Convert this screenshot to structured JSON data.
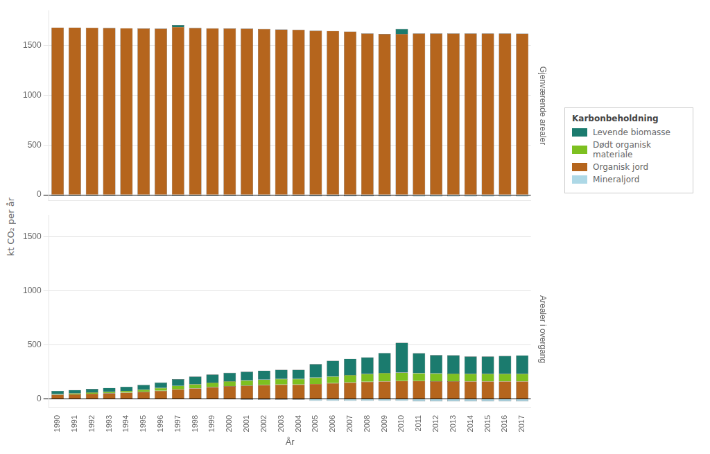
{
  "chart_data": [
    {
      "type": "bar",
      "stacked": true,
      "title": "Gjenværende arealer",
      "ylabel": "kt CO₂ per år",
      "categories": [
        1990,
        1991,
        1992,
        1993,
        1994,
        1995,
        1996,
        1997,
        1998,
        1999,
        2000,
        2001,
        2002,
        2003,
        2004,
        2005,
        2006,
        2007,
        2008,
        2009,
        2010,
        2011,
        2012,
        2013,
        2014,
        2015,
        2016,
        2017
      ],
      "series": [
        {
          "name": "Organisk jord",
          "color": "#b5651d",
          "values": [
            1680,
            1680,
            1678,
            1675,
            1673,
            1670,
            1668,
            1685,
            1675,
            1672,
            1670,
            1668,
            1665,
            1660,
            1658,
            1648,
            1645,
            1640,
            1620,
            1615,
            1615,
            1620,
            1620,
            1620,
            1620,
            1620,
            1620,
            1618
          ]
        },
        {
          "name": "Levende biomasse",
          "color": "#1b7b6e",
          "values": [
            0,
            0,
            0,
            0,
            0,
            0,
            0,
            20,
            0,
            0,
            0,
            0,
            0,
            0,
            0,
            0,
            0,
            0,
            0,
            0,
            50,
            0,
            0,
            0,
            0,
            0,
            0,
            0
          ]
        },
        {
          "name": "Mineraljord",
          "color": "#add8e6",
          "values": [
            -8,
            -8,
            -8,
            -8,
            -8,
            -8,
            -8,
            -10,
            -10,
            -10,
            -10,
            -10,
            -10,
            -10,
            -10,
            -12,
            -12,
            -12,
            -12,
            -12,
            -12,
            -14,
            -14,
            -14,
            -14,
            -14,
            -14,
            -14
          ]
        },
        {
          "name": "Levende biomasse",
          "color": "#1b7b6e",
          "values": [
            -3,
            -3,
            -3,
            -3,
            -3,
            -3,
            -3,
            -3,
            -3,
            -3,
            -3,
            -3,
            -3,
            -3,
            -3,
            -3,
            -3,
            -3,
            -3,
            -3,
            -3,
            -3,
            -3,
            -3,
            -3,
            -3,
            -3,
            -3
          ]
        }
      ],
      "ylim": [
        -60,
        1850
      ],
      "yticks": [
        0,
        500,
        1000,
        1500
      ],
      "grid": true,
      "tick_labels": "y"
    },
    {
      "type": "bar",
      "stacked": true,
      "title": "Arealer i overgang",
      "xlabel": "År",
      "categories": [
        1990,
        1991,
        1992,
        1993,
        1994,
        1995,
        1996,
        1997,
        1998,
        1999,
        2000,
        2001,
        2002,
        2003,
        2004,
        2005,
        2006,
        2007,
        2008,
        2009,
        2010,
        2011,
        2012,
        2013,
        2014,
        2015,
        2016,
        2017
      ],
      "series": [
        {
          "name": "Organisk jord",
          "color": "#b5651d",
          "values": [
            38,
            42,
            48,
            52,
            58,
            65,
            75,
            88,
            98,
            108,
            118,
            123,
            128,
            132,
            132,
            138,
            145,
            152,
            158,
            162,
            165,
            165,
            163,
            163,
            162,
            162,
            162,
            162
          ]
        },
        {
          "name": "Dødt organisk materiale",
          "color": "#7dc020",
          "values": [
            8,
            10,
            12,
            14,
            16,
            20,
            25,
            32,
            38,
            42,
            45,
            48,
            50,
            52,
            52,
            58,
            62,
            68,
            72,
            78,
            78,
            72,
            72,
            70,
            70,
            70,
            70,
            70
          ]
        },
        {
          "name": "Levende biomasse",
          "color": "#1b7b6e",
          "values": [
            28,
            30,
            32,
            35,
            38,
            45,
            52,
            62,
            70,
            75,
            78,
            80,
            83,
            85,
            85,
            125,
            145,
            150,
            155,
            185,
            275,
            185,
            170,
            170,
            160,
            160,
            165,
            170
          ]
        },
        {
          "name": "Mineraljord",
          "color": "#add8e6",
          "values": [
            0,
            0,
            0,
            0,
            0,
            0,
            0,
            0,
            0,
            0,
            -5,
            -8,
            -8,
            -8,
            -8,
            -18,
            -18,
            -18,
            -18,
            -18,
            -18,
            -22,
            -22,
            -22,
            -22,
            -22,
            -22,
            -22
          ]
        }
      ],
      "ylim": [
        -80,
        1700
      ],
      "yticks": [
        0,
        500,
        1000,
        1500
      ],
      "grid": true,
      "legend": "right",
      "legend_title": "Karbonbeholdning"
    }
  ]
}
